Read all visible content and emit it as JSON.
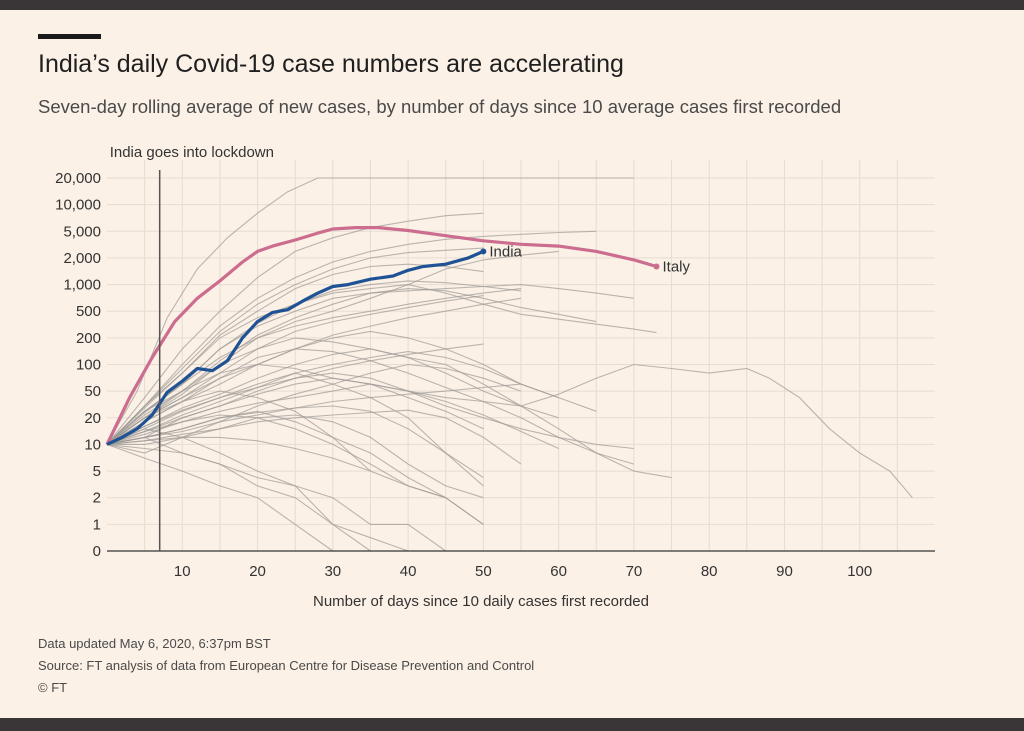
{
  "header": {
    "title": "India’s daily Covid-19 case numbers are accelerating",
    "subtitle": "Seven-day rolling average of new cases, by number of days since 10 average cases first recorded"
  },
  "footer": {
    "updated": "Data updated May 6, 2020, 6:37pm BST",
    "source": "Source: FT analysis of data from European Centre for Disease Prevention and Control",
    "credit": "© FT"
  },
  "colors": {
    "background": "#fbf1e6",
    "india": "#1f5294",
    "italy": "#cc6c8e",
    "other_countries": "#9e9a96"
  },
  "chart_data": {
    "type": "line",
    "title": "India’s daily Covid-19 case numbers are accelerating",
    "subtitle": "Seven-day rolling average of new cases, by number of days since 10 average cases first recorded",
    "xlabel": "Number of days since 10 daily cases first recorded",
    "ylabel": "",
    "yscale": "log",
    "xlim": [
      0,
      110
    ],
    "x_ticks": [
      10,
      20,
      30,
      40,
      50,
      60,
      70,
      80,
      90,
      100
    ],
    "y_ticks": [
      {
        "value": 0,
        "label": "0"
      },
      {
        "value": 1,
        "label": "1"
      },
      {
        "value": 2,
        "label": "2"
      },
      {
        "value": 5,
        "label": "5"
      },
      {
        "value": 10,
        "label": "10"
      },
      {
        "value": 20,
        "label": "20"
      },
      {
        "value": 50,
        "label": "50"
      },
      {
        "value": 100,
        "label": "100"
      },
      {
        "value": 200,
        "label": "200"
      },
      {
        "value": 500,
        "label": "500"
      },
      {
        "value": 1000,
        "label": "1,000"
      },
      {
        "value": 2000,
        "label": "2,000"
      },
      {
        "value": 5000,
        "label": "5,000"
      },
      {
        "value": 10000,
        "label": "10,000"
      },
      {
        "value": 20000,
        "label": "20,000"
      }
    ],
    "annotation": {
      "label": "India goes into lockdown",
      "x": 7
    },
    "grid": true,
    "series": [
      {
        "name": "India",
        "x": [
          0,
          2,
          4,
          6,
          8,
          10,
          12,
          14,
          16,
          18,
          20,
          22,
          24,
          26,
          28,
          30,
          32,
          35,
          38,
          40,
          42,
          45,
          48,
          50
        ],
        "values": [
          10,
          12,
          15,
          22,
          48,
          65,
          90,
          85,
          110,
          200,
          350,
          480,
          520,
          650,
          800,
          950,
          1000,
          1150,
          1250,
          1450,
          1600,
          1700,
          2000,
          2500
        ]
      },
      {
        "name": "Italy",
        "x": [
          0,
          3,
          6,
          9,
          12,
          15,
          18,
          20,
          22,
          25,
          28,
          30,
          33,
          36,
          40,
          45,
          50,
          55,
          60,
          65,
          70,
          73
        ],
        "values": [
          10,
          40,
          120,
          350,
          700,
          1100,
          1800,
          2500,
          3000,
          3700,
          4700,
          5300,
          5500,
          5500,
          5100,
          4300,
          3600,
          3200,
          3000,
          2500,
          1900,
          1600
        ]
      },
      {
        "name": "",
        "x": [
          0,
          4,
          8,
          12,
          16,
          20,
          24,
          28,
          32,
          36,
          40,
          45,
          50,
          55,
          60,
          65,
          70
        ],
        "values": [
          10,
          50,
          400,
          1500,
          4000,
          8000,
          14000,
          20000,
          26000,
          29000,
          30000,
          31000,
          30500,
          30000,
          29500,
          29000,
          28500
        ]
      },
      {
        "name": "",
        "x": [
          0,
          5,
          10,
          15,
          20,
          25,
          30,
          35,
          40,
          45,
          50
        ],
        "values": [
          10,
          40,
          150,
          500,
          1200,
          2500,
          4000,
          5500,
          6500,
          7500,
          8000
        ]
      },
      {
        "name": "",
        "x": [
          0,
          5,
          10,
          15,
          20,
          25,
          30,
          35,
          40,
          45,
          50,
          55,
          60,
          65
        ],
        "values": [
          10,
          30,
          100,
          300,
          700,
          1200,
          1800,
          2500,
          3200,
          3800,
          4200,
          4500,
          4800,
          5000
        ]
      },
      {
        "name": "",
        "x": [
          0,
          5,
          10,
          15,
          20,
          25,
          30,
          35,
          40,
          45,
          50,
          55,
          60,
          65,
          70
        ],
        "values": [
          10,
          25,
          60,
          150,
          300,
          500,
          700,
          800,
          850,
          900,
          950,
          1000,
          900,
          800,
          700
        ]
      },
      {
        "name": "",
        "x": [
          0,
          5,
          10,
          15,
          20,
          25,
          30,
          35,
          40,
          45,
          50,
          55,
          60,
          65,
          70,
          73
        ],
        "values": [
          10,
          30,
          80,
          200,
          400,
          600,
          800,
          900,
          1000,
          800,
          600,
          450,
          380,
          320,
          270,
          240
        ]
      },
      {
        "name": "",
        "x": [
          0,
          5,
          10,
          15,
          20,
          25,
          30,
          35,
          40,
          45,
          50,
          55,
          60,
          65,
          70,
          75,
          80,
          85,
          88,
          92,
          96,
          100,
          104,
          107
        ],
        "values": [
          10,
          25,
          50,
          80,
          100,
          90,
          70,
          60,
          50,
          40,
          35,
          30,
          45,
          70,
          100,
          90,
          80,
          90,
          70,
          40,
          15,
          8,
          5,
          2
        ]
      },
      {
        "name": "",
        "x": [
          0,
          5,
          10,
          15,
          20,
          25,
          30,
          35,
          40,
          45,
          50,
          55,
          60,
          65,
          70,
          75
        ],
        "values": [
          10,
          20,
          50,
          100,
          150,
          200,
          180,
          150,
          120,
          100,
          60,
          30,
          15,
          8,
          5,
          4
        ]
      },
      {
        "name": "",
        "x": [
          0,
          5,
          10,
          15,
          20,
          25,
          30,
          35,
          40,
          45,
          50,
          55,
          60,
          65,
          70
        ],
        "values": [
          10,
          18,
          35,
          70,
          120,
          150,
          140,
          110,
          80,
          55,
          35,
          20,
          12,
          8,
          6
        ]
      },
      {
        "name": "",
        "x": [
          0,
          5,
          10,
          15,
          20,
          25,
          30,
          35,
          40,
          45,
          50
        ],
        "values": [
          10,
          12,
          15,
          20,
          25,
          18,
          12,
          8,
          4,
          2,
          1
        ]
      },
      {
        "name": "",
        "x": [
          0,
          5,
          10,
          15,
          20,
          25,
          30,
          35,
          40,
          45,
          50,
          55
        ],
        "values": [
          10,
          8,
          12,
          18,
          30,
          45,
          60,
          80,
          100,
          90,
          70,
          50
        ]
      },
      {
        "name": "",
        "x": [
          0,
          5,
          10,
          15,
          20,
          25,
          30,
          35,
          40
        ],
        "values": [
          10,
          12,
          8,
          6,
          3,
          2,
          1,
          0.5,
          0
        ]
      },
      {
        "name": "",
        "x": [
          0,
          5,
          10,
          15,
          20,
          25,
          30,
          35,
          40,
          45,
          50
        ],
        "values": [
          10,
          15,
          25,
          40,
          60,
          80,
          60,
          40,
          20,
          8,
          3
        ]
      },
      {
        "name": "",
        "x": [
          0,
          5,
          10,
          15,
          20,
          25,
          30,
          35,
          40,
          45,
          50,
          55,
          60
        ],
        "values": [
          10,
          14,
          22,
          35,
          55,
          80,
          100,
          120,
          140,
          120,
          90,
          60,
          40
        ]
      },
      {
        "name": "",
        "x": [
          0,
          5,
          10,
          15,
          20,
          25,
          30,
          35,
          40,
          45,
          50,
          55,
          60,
          65
        ],
        "values": [
          10,
          20,
          40,
          70,
          100,
          150,
          200,
          250,
          200,
          150,
          100,
          60,
          40,
          25
        ]
      },
      {
        "name": "",
        "x": [
          0,
          5,
          10,
          15,
          20,
          25,
          30,
          35,
          40,
          45,
          50,
          55,
          60,
          65,
          70
        ],
        "values": [
          10,
          12,
          20,
          30,
          50,
          70,
          80,
          70,
          50,
          30,
          20,
          15,
          12,
          10,
          9
        ]
      },
      {
        "name": "",
        "x": [
          0,
          5,
          10,
          15,
          20,
          25,
          30,
          35,
          40,
          45,
          50
        ],
        "values": [
          10,
          10,
          12,
          15,
          20,
          22,
          18,
          12,
          6,
          3,
          2
        ]
      },
      {
        "name": "",
        "x": [
          0,
          5,
          10,
          15,
          20,
          25,
          30,
          35
        ],
        "values": [
          10,
          15,
          12,
          8,
          5,
          3,
          1,
          0
        ]
      },
      {
        "name": "",
        "x": [
          0,
          5,
          10,
          15,
          20,
          25,
          30,
          35,
          40,
          45,
          50,
          55
        ],
        "values": [
          10,
          25,
          60,
          120,
          200,
          300,
          400,
          500,
          600,
          700,
          800,
          900
        ]
      },
      {
        "name": "",
        "x": [
          0,
          5,
          10,
          15,
          20,
          25,
          30,
          35,
          40,
          45,
          50
        ],
        "values": [
          10,
          30,
          90,
          250,
          600,
          1000,
          1500,
          2000,
          2400,
          2600,
          2800
        ]
      },
      {
        "name": "",
        "x": [
          0,
          5,
          10,
          15,
          20,
          25,
          30,
          35,
          40,
          45,
          50,
          55,
          60
        ],
        "values": [
          10,
          20,
          45,
          100,
          200,
          350,
          500,
          700,
          1000,
          1500,
          1900,
          2200,
          2500
        ]
      },
      {
        "name": "",
        "x": [
          0,
          5,
          10,
          15,
          20,
          25,
          30,
          35,
          40,
          45,
          50,
          55,
          60,
          65
        ],
        "values": [
          10,
          22,
          50,
          110,
          220,
          400,
          600,
          800,
          900,
          850,
          700,
          550,
          450,
          350
        ]
      },
      {
        "name": "",
        "x": [
          0,
          5,
          10,
          15,
          20,
          25,
          30,
          35,
          40,
          45,
          50,
          55
        ],
        "values": [
          10,
          12,
          14,
          18,
          22,
          28,
          35,
          40,
          45,
          50,
          55,
          60
        ]
      },
      {
        "name": "",
        "x": [
          0,
          5,
          10,
          15,
          20,
          25,
          30,
          35,
          40,
          45,
          50
        ],
        "values": [
          10,
          12,
          15,
          20,
          24,
          28,
          30,
          25,
          15,
          8,
          4
        ]
      },
      {
        "name": "",
        "x": [
          0,
          5,
          10,
          15,
          20,
          25,
          30,
          35,
          40,
          45,
          50,
          55,
          60
        ],
        "values": [
          10,
          16,
          28,
          45,
          70,
          100,
          130,
          150,
          120,
          80,
          50,
          30,
          20
        ]
      },
      {
        "name": "",
        "x": [
          0,
          5,
          10,
          15,
          20,
          25,
          30,
          35,
          40,
          45,
          50,
          55
        ],
        "values": [
          10,
          18,
          35,
          60,
          100,
          150,
          220,
          300,
          400,
          500,
          600,
          700
        ]
      },
      {
        "name": "",
        "x": [
          0,
          5,
          10,
          15,
          20,
          25,
          30,
          35,
          40,
          45,
          50
        ],
        "values": [
          10,
          20,
          40,
          80,
          150,
          250,
          350,
          450,
          550,
          650,
          750
        ]
      },
      {
        "name": "",
        "x": [
          0,
          5,
          10,
          15,
          20,
          25,
          30,
          35,
          40,
          45
        ],
        "values": [
          10,
          9,
          8,
          6,
          4,
          3,
          2,
          1,
          1,
          0
        ]
      },
      {
        "name": "",
        "x": [
          0,
          5,
          10,
          15,
          20,
          25,
          30,
          35,
          40,
          45,
          50,
          55
        ],
        "values": [
          10,
          11,
          13,
          15,
          18,
          20,
          22,
          24,
          26,
          20,
          12,
          6
        ]
      },
      {
        "name": "",
        "x": [
          0,
          5,
          10,
          15,
          20,
          25,
          30,
          35,
          40,
          45,
          50
        ],
        "values": [
          10,
          14,
          20,
          30,
          45,
          60,
          70,
          60,
          40,
          25,
          15
        ]
      },
      {
        "name": "",
        "x": [
          0,
          5,
          10,
          15,
          20,
          25,
          30,
          35,
          40,
          45
        ],
        "values": [
          10,
          14,
          18,
          22,
          20,
          15,
          10,
          6,
          3,
          2
        ]
      },
      {
        "name": "",
        "x": [
          0,
          5,
          10,
          15,
          20,
          25,
          30,
          35,
          40,
          45,
          50
        ],
        "values": [
          10,
          28,
          80,
          220,
          500,
          900,
          1300,
          1600,
          1700,
          1600,
          1400
        ]
      },
      {
        "name": "",
        "x": [
          0,
          5,
          10,
          15,
          20,
          25,
          30,
          35,
          40,
          45,
          50,
          55
        ],
        "values": [
          10,
          24,
          60,
          150,
          330,
          600,
          850,
          1000,
          1100,
          1050,
          950,
          850
        ]
      },
      {
        "name": "",
        "x": [
          0,
          5,
          10,
          15,
          20,
          25,
          30,
          35
        ],
        "values": [
          10,
          20,
          35,
          50,
          40,
          25,
          12,
          5
        ]
      },
      {
        "name": "",
        "x": [
          0,
          5,
          10,
          15,
          20,
          25,
          30,
          35,
          40,
          45,
          50,
          55,
          60
        ],
        "values": [
          10,
          13,
          18,
          25,
          33,
          40,
          50,
          60,
          50,
          35,
          22,
          14,
          9
        ]
      },
      {
        "name": "",
        "x": [
          0,
          5,
          10,
          15,
          20,
          25,
          30
        ],
        "values": [
          10,
          7,
          5,
          3,
          2,
          1,
          0
        ]
      },
      {
        "name": "",
        "x": [
          0,
          5,
          10,
          15,
          20,
          25,
          30,
          35,
          40,
          45,
          50
        ],
        "values": [
          10,
          16,
          26,
          40,
          55,
          70,
          90,
          110,
          130,
          150,
          170
        ]
      },
      {
        "name": "",
        "x": [
          0,
          5,
          10,
          15,
          20,
          25,
          30,
          35,
          40,
          45,
          50
        ],
        "values": [
          10,
          11,
          12,
          12,
          11,
          9,
          7,
          5,
          3,
          2,
          1
        ]
      }
    ]
  }
}
